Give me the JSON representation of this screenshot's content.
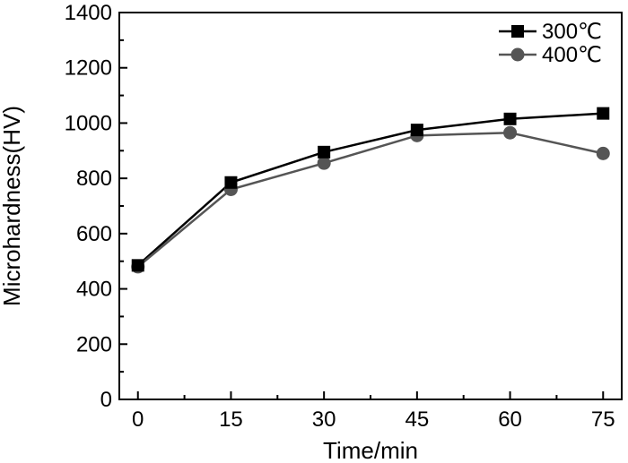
{
  "chart_data": {
    "type": "line",
    "title": "",
    "xlabel": "Time/min",
    "ylabel": "Microhardness(HV)",
    "x": [
      0,
      15,
      30,
      45,
      60,
      75
    ],
    "x_ticks": [
      0,
      15,
      30,
      45,
      60,
      75
    ],
    "y_ticks": [
      0,
      200,
      400,
      600,
      800,
      1000,
      1200,
      1400
    ],
    "xlim": [
      -3,
      78
    ],
    "ylim": [
      0,
      1400
    ],
    "grid": false,
    "legend_position": "top-right",
    "series": [
      {
        "name": "300℃",
        "marker": "square",
        "color": "#000000",
        "values": [
          485,
          785,
          895,
          975,
          1015,
          1035
        ]
      },
      {
        "name": "400℃",
        "marker": "circle",
        "color": "#555555",
        "values": [
          480,
          760,
          855,
          955,
          965,
          890
        ]
      }
    ]
  }
}
